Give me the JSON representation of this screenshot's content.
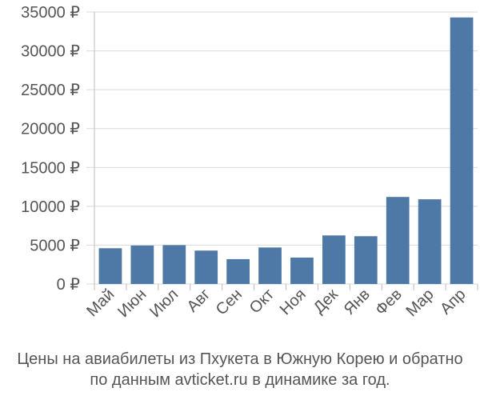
{
  "chart_data": {
    "type": "bar",
    "currency_suffix": " ₽",
    "categories": [
      "Май",
      "Июн",
      "Июл",
      "Авг",
      "Сен",
      "Окт",
      "Ноя",
      "Дек",
      "Янв",
      "Фев",
      "Мар",
      "Апр"
    ],
    "values": [
      4600,
      4950,
      5000,
      4300,
      3200,
      4700,
      3400,
      6250,
      6150,
      11200,
      10900,
      34300
    ],
    "ylim": [
      0,
      35000
    ],
    "yticks": [
      0,
      5000,
      10000,
      15000,
      20000,
      25000,
      30000,
      35000
    ],
    "ytick_labels": [
      "0 ₽",
      "5000 ₽",
      "10000 ₽",
      "15000 ₽",
      "20000 ₽",
      "25000 ₽",
      "30000 ₽",
      "35000 ₽"
    ],
    "grid": true,
    "bar_color": "#4e79a7",
    "caption_line1": "Цены на авиабилеты из Пхукета в Южную Корею и обратно",
    "caption_line2": "по данным avticket.ru в динамике за год."
  }
}
